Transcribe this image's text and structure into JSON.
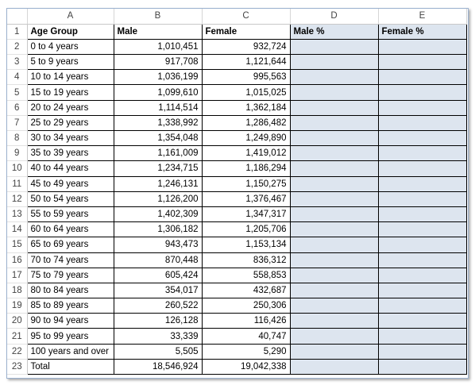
{
  "sheet": {
    "columns": [
      "A",
      "B",
      "C",
      "D",
      "E"
    ],
    "headers": {
      "age_group": "Age Group",
      "male": "Male",
      "female": "Female",
      "male_pct": "Male %",
      "female_pct": "Female %"
    },
    "rows": [
      {
        "num": "2",
        "age": "0 to 4 years",
        "male": "1,010,451",
        "female": "932,724"
      },
      {
        "num": "3",
        "age": "5 to 9 years",
        "male": "917,708",
        "female": "1,121,644"
      },
      {
        "num": "4",
        "age": "10 to 14 years",
        "male": "1,036,199",
        "female": "995,563"
      },
      {
        "num": "5",
        "age": "15 to 19 years",
        "male": "1,099,610",
        "female": "1,015,025"
      },
      {
        "num": "6",
        "age": "20 to 24 years",
        "male": "1,114,514",
        "female": "1,362,184"
      },
      {
        "num": "7",
        "age": "25 to 29 years",
        "male": "1,338,992",
        "female": "1,286,482"
      },
      {
        "num": "8",
        "age": "30 to 34 years",
        "male": "1,354,048",
        "female": "1,249,890"
      },
      {
        "num": "9",
        "age": "35 to 39 years",
        "male": "1,161,009",
        "female": "1,419,012"
      },
      {
        "num": "10",
        "age": "40 to 44 years",
        "male": "1,234,715",
        "female": "1,186,294"
      },
      {
        "num": "11",
        "age": "45 to 49 years",
        "male": "1,246,131",
        "female": "1,150,275"
      },
      {
        "num": "12",
        "age": "50 to 54 years",
        "male": "1,126,200",
        "female": "1,376,467"
      },
      {
        "num": "13",
        "age": "55 to 59 years",
        "male": "1,402,309",
        "female": "1,347,317"
      },
      {
        "num": "14",
        "age": "60 to 64 years",
        "male": "1,306,182",
        "female": "1,205,706"
      },
      {
        "num": "15",
        "age": "65 to 69 years",
        "male": "943,473",
        "female": "1,153,134"
      },
      {
        "num": "16",
        "age": "70 to 74 years",
        "male": "870,448",
        "female": "836,312"
      },
      {
        "num": "17",
        "age": "75 to 79 years",
        "male": "605,424",
        "female": "558,853"
      },
      {
        "num": "18",
        "age": "80 to 84 years",
        "male": "354,017",
        "female": "432,687"
      },
      {
        "num": "19",
        "age": "85 to 89 years",
        "male": "260,522",
        "female": "250,306"
      },
      {
        "num": "20",
        "age": "90 to 94 years",
        "male": "126,128",
        "female": "116,426"
      },
      {
        "num": "21",
        "age": "95 to 99 years",
        "male": "33,339",
        "female": "40,747"
      },
      {
        "num": "22",
        "age": "100 years and over",
        "male": "5,505",
        "female": "5,290"
      }
    ],
    "total": {
      "num": "23",
      "label": "Total",
      "male": "18,546,924",
      "female": "19,042,338"
    },
    "header_row_num": "1",
    "pct_fill_color": "#dde5ef"
  }
}
